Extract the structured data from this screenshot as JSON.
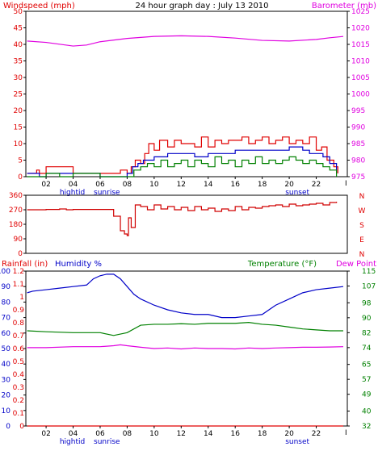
{
  "colors": {
    "wind_label": "#e00000",
    "baro_label": "#e000e0",
    "title": "#000000",
    "red": "#e00000",
    "blue": "#0000c8",
    "green": "#008000",
    "magenta": "#e000e0",
    "dirline": "#d00000",
    "frame": "#000000",
    "axis_text": "#000000"
  },
  "title": "24 hour graph day : July 13 2010",
  "x_ticks": [
    "02",
    "04",
    "06",
    "08",
    "10",
    "12",
    "14",
    "16",
    "18",
    "20",
    "22"
  ],
  "x_tick_positions": [
    2,
    4,
    6,
    8,
    10,
    12,
    14,
    16,
    18,
    20,
    22
  ],
  "x_range": [
    0.5,
    24.3
  ],
  "x_end_label": "I",
  "annotations": {
    "hightide_label": "hightid",
    "sunrise_label": "sunrise",
    "sunset_label": "sunset",
    "hightide_time": 4.3,
    "sunrise_time": 5.9,
    "sunset_time": 20.6
  },
  "chart_data": [
    {
      "type": "line",
      "title": "24 hour graph day : July 13 2010",
      "ylabel_left": "Windspeed (mph)",
      "ylabel_right": "Barometer (mb)",
      "ylim_left": [
        0,
        50
      ],
      "ylim_right": [
        975,
        1025
      ],
      "yticks_left": [
        "0",
        "5",
        "10",
        "15",
        "20",
        "25",
        "30",
        "35",
        "40",
        "45",
        "50"
      ],
      "yticks_right": [
        "975",
        "980",
        "985",
        "990",
        "995",
        "1000",
        "1005",
        "1010",
        "1015",
        "1020",
        "1025"
      ],
      "series": [
        {
          "color": "red",
          "axis": "left",
          "x": [
            0.6,
            1.3,
            1.5,
            2.0,
            3.0,
            3.8,
            4.0,
            5.0,
            6.0,
            7.0,
            7.5,
            7.8,
            8.0,
            8.3,
            8.6,
            9.0,
            9.3,
            9.6,
            10.0,
            10.4,
            11.0,
            11.5,
            12.0,
            12.5,
            13.0,
            13.5,
            14.0,
            14.5,
            15.0,
            15.5,
            16.0,
            16.5,
            17.0,
            17.5,
            18.0,
            18.5,
            19.0,
            19.5,
            20.0,
            20.5,
            21.0,
            21.5,
            22.0,
            22.4,
            22.8,
            23.3,
            23.6
          ],
          "values": [
            1,
            2,
            1,
            3,
            3,
            3,
            1,
            1,
            1,
            1,
            2,
            2,
            1,
            3,
            5,
            4,
            7,
            10,
            8,
            11,
            9,
            11,
            10,
            10,
            9,
            12,
            9,
            11,
            10,
            11,
            11,
            12,
            10,
            11,
            12,
            10,
            11,
            12,
            10,
            11,
            10,
            12,
            8,
            9,
            5,
            3,
            1
          ]
        },
        {
          "color": "blue",
          "axis": "left",
          "x": [
            0.6,
            1.0,
            1.5,
            2.0,
            3.0,
            4.0,
            5.0,
            6.0,
            7.0,
            8.0,
            8.4,
            8.8,
            9.2,
            10.0,
            11.0,
            12.0,
            13.0,
            14.0,
            15.0,
            16.0,
            17.0,
            18.0,
            19.0,
            20.0,
            21.0,
            21.5,
            22.0,
            22.5,
            23.0,
            23.5
          ],
          "values": [
            1,
            1,
            0,
            1,
            1,
            1,
            1,
            0,
            0,
            1,
            3,
            4,
            5,
            6,
            7,
            7,
            6,
            7,
            7,
            8,
            8,
            8,
            8,
            9,
            8,
            7,
            7,
            6,
            4,
            1
          ]
        },
        {
          "color": "green",
          "axis": "left",
          "x": [
            0.6,
            2.0,
            3.0,
            4.0,
            6.0,
            8.0,
            8.5,
            9.0,
            9.5,
            10.0,
            10.5,
            11.0,
            11.5,
            12.0,
            12.5,
            13.0,
            13.5,
            14.0,
            14.5,
            15.0,
            15.5,
            16.0,
            16.5,
            17.0,
            17.5,
            18.0,
            18.5,
            19.0,
            19.5,
            20.0,
            20.5,
            21.0,
            21.5,
            22.0,
            22.5,
            23.0,
            23.5
          ],
          "values": [
            0,
            1,
            0,
            1,
            0,
            0,
            2,
            3,
            4,
            3,
            5,
            3,
            4,
            5,
            3,
            5,
            4,
            3,
            6,
            4,
            5,
            3,
            5,
            4,
            6,
            4,
            5,
            4,
            5,
            6,
            5,
            4,
            5,
            4,
            3,
            2,
            0
          ]
        },
        {
          "color": "magenta",
          "axis": "right",
          "x": [
            0.6,
            2.0,
            4.0,
            5.0,
            6.0,
            8.0,
            10.0,
            12.0,
            14.0,
            16.0,
            18.0,
            20.0,
            22.0,
            23.0,
            24.0
          ],
          "values": [
            1016,
            1015.6,
            1014.5,
            1014.8,
            1015.8,
            1016.8,
            1017.4,
            1017.6,
            1017.4,
            1016.9,
            1016.2,
            1016.0,
            1016.5,
            1017.0,
            1017.4
          ]
        }
      ]
    },
    {
      "type": "line",
      "ylim": [
        0,
        360
      ],
      "yticks": [
        "0",
        "90",
        "180",
        "270",
        "360"
      ],
      "compass_labels": [
        "N",
        "W",
        "S",
        "E",
        "N"
      ],
      "series": [
        {
          "color": "dirline",
          "x": [
            0.6,
            1.0,
            2.0,
            3.0,
            3.5,
            4.0,
            5.0,
            6.0,
            6.8,
            7.0,
            7.5,
            7.8,
            8.0,
            8.1,
            8.3,
            8.6,
            9.0,
            9.5,
            10.0,
            10.5,
            11.0,
            11.5,
            12.0,
            12.5,
            13.0,
            13.5,
            14.0,
            14.5,
            15.0,
            15.5,
            16.0,
            16.5,
            17.0,
            17.5,
            18.0,
            18.5,
            19.0,
            19.5,
            20.0,
            20.5,
            21.0,
            21.5,
            22.0,
            22.5,
            23.0,
            23.5
          ],
          "values": [
            270,
            270,
            272,
            275,
            270,
            272,
            272,
            272,
            272,
            230,
            140,
            120,
            110,
            220,
            160,
            300,
            290,
            270,
            300,
            275,
            290,
            270,
            285,
            265,
            290,
            270,
            280,
            260,
            275,
            265,
            290,
            270,
            285,
            280,
            290,
            295,
            300,
            290,
            305,
            295,
            300,
            305,
            310,
            300,
            315,
            320
          ]
        }
      ]
    },
    {
      "type": "line",
      "ylabel_rain": "Rainfall (in)",
      "ylabel_humidity": "Humidity %",
      "ylabel_temp": "Temperature (°F)",
      "ylabel_dew": "Dew Point",
      "ylim_humidity": [
        0,
        100
      ],
      "ylim_rain": [
        0,
        1.2
      ],
      "ylim_temp": [
        32,
        115
      ],
      "yticks_humidity": [
        "0",
        "10",
        "20",
        "30",
        "40",
        "50",
        "60",
        "70",
        "80",
        "90",
        "100"
      ],
      "yticks_rain": [
        "0",
        "0.1",
        "0.2",
        "0.3",
        "0.4",
        "0.5",
        "0.6",
        "0.7",
        "0.8",
        "0.9",
        "1",
        "1.1",
        "1.2"
      ],
      "yticks_temp": [
        "32",
        "40",
        "49",
        "57",
        "65",
        "74",
        "82",
        "90",
        "98",
        "107",
        "115"
      ],
      "series": [
        {
          "color": "blue",
          "name": "Humidity %",
          "axis": "humidity",
          "x": [
            0.6,
            1.0,
            2.0,
            3.0,
            4.0,
            5.0,
            5.5,
            6.0,
            6.5,
            7.0,
            7.5,
            8.0,
            8.5,
            9.0,
            10.0,
            11.0,
            12.0,
            13.0,
            14.0,
            15.0,
            16.0,
            17.0,
            18.0,
            19.0,
            20.0,
            21.0,
            22.0,
            23.0,
            24.0
          ],
          "values": [
            86,
            87,
            88,
            89,
            90,
            91,
            95,
            97,
            98,
            98,
            95,
            90,
            85,
            82,
            78,
            75,
            73,
            72,
            72,
            70,
            70,
            71,
            72,
            78,
            82,
            86,
            88,
            89,
            90
          ]
        },
        {
          "color": "green",
          "name": "Temperature (°F)",
          "axis": "temp",
          "x": [
            0.6,
            2.0,
            4.0,
            6.0,
            7.0,
            8.0,
            9.0,
            10.0,
            11.0,
            12.0,
            13.0,
            14.0,
            15.0,
            16.0,
            17.0,
            18.0,
            19.0,
            20.0,
            21.0,
            22.0,
            23.0,
            24.0
          ],
          "values": [
            83,
            82.5,
            82,
            82,
            80.5,
            82,
            86,
            86.5,
            86.5,
            86.8,
            86.5,
            87,
            87,
            87,
            87.5,
            86.5,
            86,
            85,
            84,
            83.5,
            83,
            83
          ]
        },
        {
          "color": "magenta",
          "name": "Dew Point",
          "axis": "temp",
          "x": [
            0.6,
            2.0,
            4.0,
            6.0,
            7.0,
            7.5,
            8.0,
            9.0,
            10.0,
            11.0,
            12.0,
            13.0,
            14.0,
            15.0,
            16.0,
            17.0,
            18.0,
            19.0,
            20.0,
            21.0,
            22.0,
            23.0,
            24.0
          ],
          "values": [
            74,
            74,
            74.5,
            74.5,
            75,
            75.5,
            75,
            74.2,
            73.5,
            73.8,
            73.3,
            73.8,
            73.5,
            73.5,
            73.3,
            73.8,
            73.5,
            73.8,
            74,
            74.2,
            74.2,
            74.3,
            74.5
          ]
        },
        {
          "color": "red",
          "name": "Rainfall (in)",
          "axis": "rain",
          "x": [
            0.6,
            24.0
          ],
          "values": [
            0,
            0
          ]
        }
      ]
    }
  ]
}
